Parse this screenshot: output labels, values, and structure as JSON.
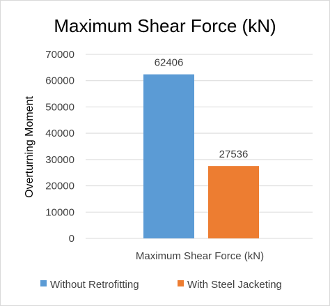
{
  "chart_data": {
    "type": "bar",
    "title": "Maximum Shear Force (kN)",
    "xlabel": "",
    "ylabel": "Overturning Moment",
    "categories": [
      "Maximum Shear Force (kN)"
    ],
    "series": [
      {
        "name": "Without Retrofitting",
        "values": [
          62406
        ],
        "color": "#5b9bd5"
      },
      {
        "name": "With Steel Jacketing",
        "values": [
          27536
        ],
        "color": "#ed7d31"
      }
    ],
    "ylim": [
      0,
      70000
    ],
    "yticks": [
      "0",
      "10000",
      "20000",
      "30000",
      "40000",
      "50000",
      "60000",
      "70000"
    ],
    "grid": true,
    "legend_position": "bottom"
  }
}
